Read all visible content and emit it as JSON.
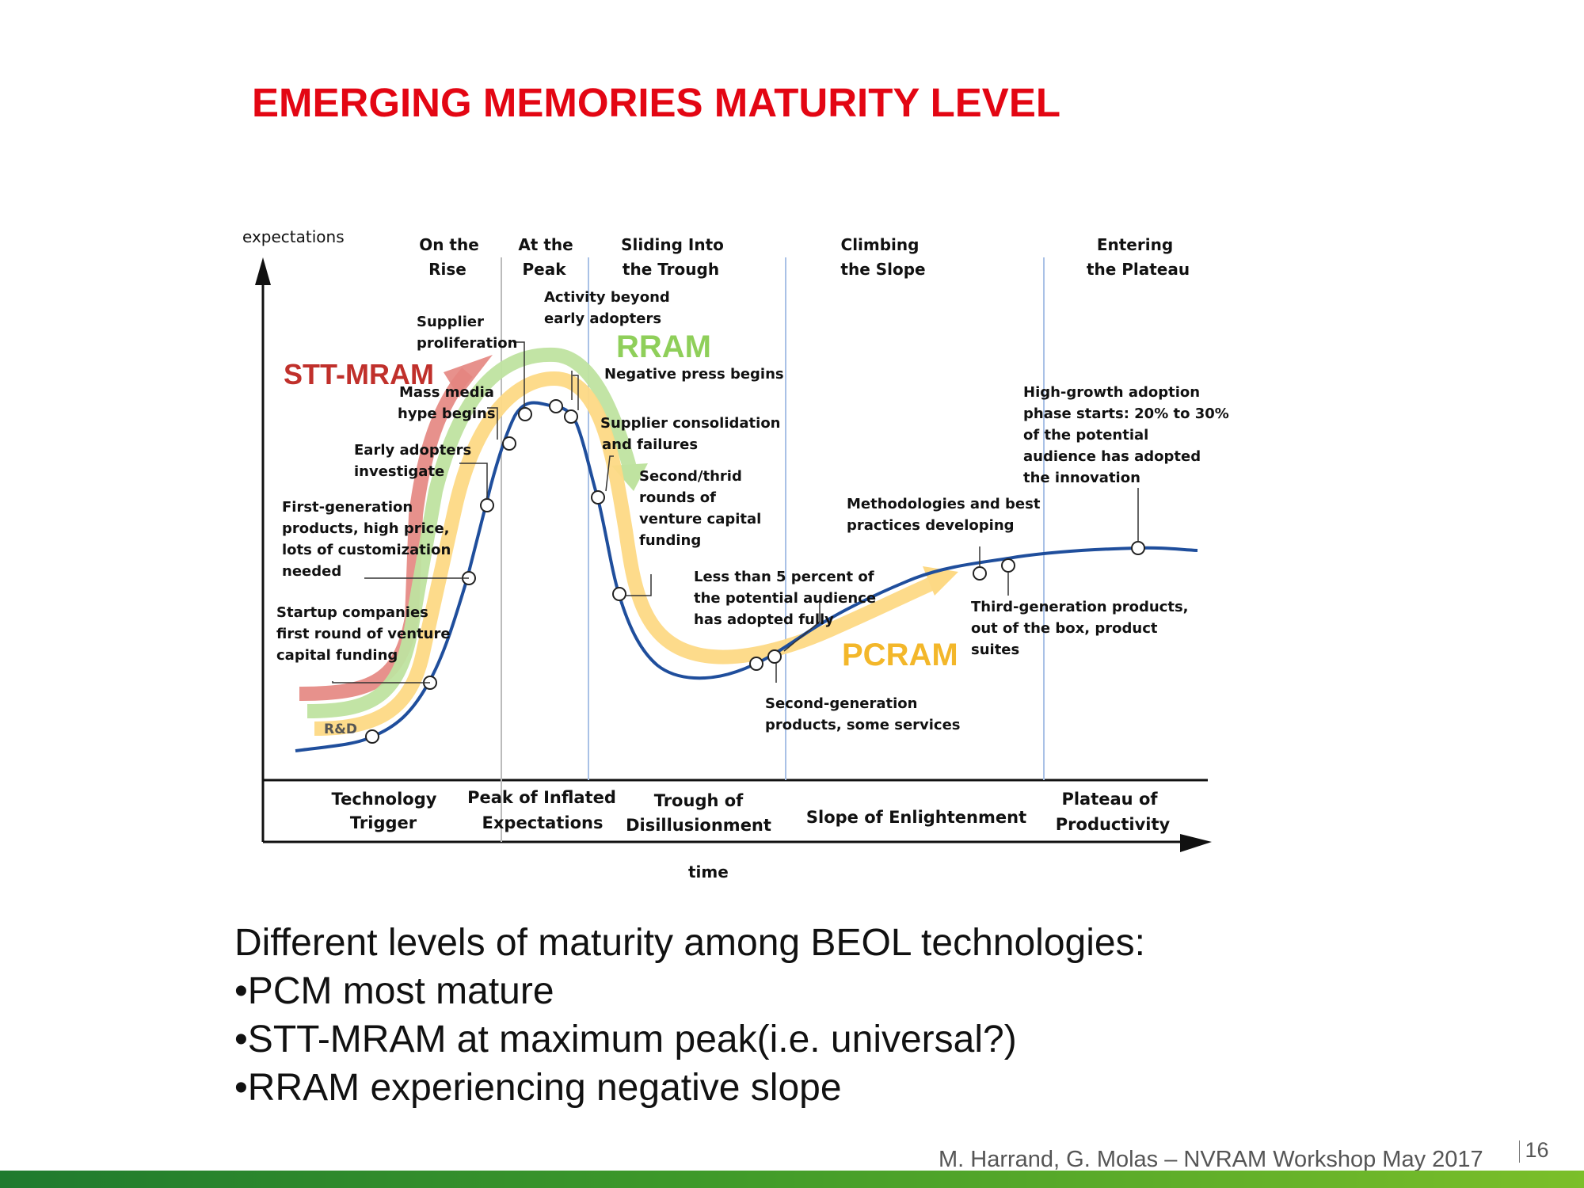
{
  "slide": {
    "title": "EMERGING MEMORIES MATURITY LEVEL",
    "page_number": "16",
    "footer": "M. Harrand, G. Molas – NVRAM Workshop May 2017"
  },
  "diagram": {
    "y_axis_label": "expectations",
    "x_axis_label": "time",
    "phases_top": [
      {
        "line1": "On the",
        "line2": "Rise"
      },
      {
        "line1": "At the",
        "line2": "Peak"
      },
      {
        "line1": "Sliding Into",
        "line2": "the Trough"
      },
      {
        "line1": "Climbing",
        "line2": "the Slope"
      },
      {
        "line1": "Entering",
        "line2": "the Plateau"
      }
    ],
    "phases_bottom": [
      {
        "line1": "Technology",
        "line2": "Trigger"
      },
      {
        "line1": "Peak of Inflated",
        "line2": "Expectations"
      },
      {
        "line1": "Trough of",
        "line2": "Disillusionment"
      },
      {
        "line1": "Slope of Enlightenment",
        "line2": ""
      },
      {
        "line1": "Plateau of",
        "line2": "Productivity"
      }
    ],
    "annotations": {
      "rd": "R&D",
      "startup": [
        "Startup companies",
        "first round of venture",
        "capital funding"
      ],
      "first_gen": [
        "First-generation",
        "products, high price,",
        "lots of customization",
        "needed"
      ],
      "early_adopters": [
        "Early adopters",
        "investigate"
      ],
      "mass_media": [
        "Mass media",
        "hype begins"
      ],
      "supplier_prolif": [
        "Supplier",
        "proliferation"
      ],
      "activity": [
        "Activity beyond",
        "early adopters"
      ],
      "negative_press": "Negative press begins",
      "supplier_consol": [
        "Supplier consolidation",
        "and failures"
      ],
      "second_third": [
        "Second/thrid",
        "rounds of",
        "venture capital",
        "funding"
      ],
      "less_than": [
        "Less than 5 percent of",
        "the potential audience",
        "has adopted fully"
      ],
      "second_gen": [
        "Second-generation",
        "products, some services"
      ],
      "methodologies": [
        "Methodologies and best",
        "practices developing"
      ],
      "third_gen": [
        "Third-generation products,",
        "out of the box, product",
        "suites"
      ],
      "high_growth": [
        "High-growth adoption",
        "phase starts: 20% to 30%",
        "of the potential",
        "audience has adopted",
        "the innovation"
      ]
    },
    "technologies": [
      {
        "name": "STT-MRAM",
        "color": "#c0302b"
      },
      {
        "name": "RRAM",
        "color": "#8fcf5a"
      },
      {
        "name": "PCRAM",
        "color": "#f3b72a"
      }
    ]
  },
  "body": {
    "heading": "Different levels of maturity among BEOL technologies:",
    "bullets": [
      "•PCM most mature",
      "•STT-MRAM at maximum peak(i.e. universal?)",
      "•RRAM experiencing negative slope"
    ]
  },
  "colors": {
    "title": "#e30613",
    "curve": "#1f4e9c",
    "stt_arrow": "#e4857f",
    "rram_arrow": "#bfe3a0",
    "pcram_arrow": "#fdd985"
  }
}
